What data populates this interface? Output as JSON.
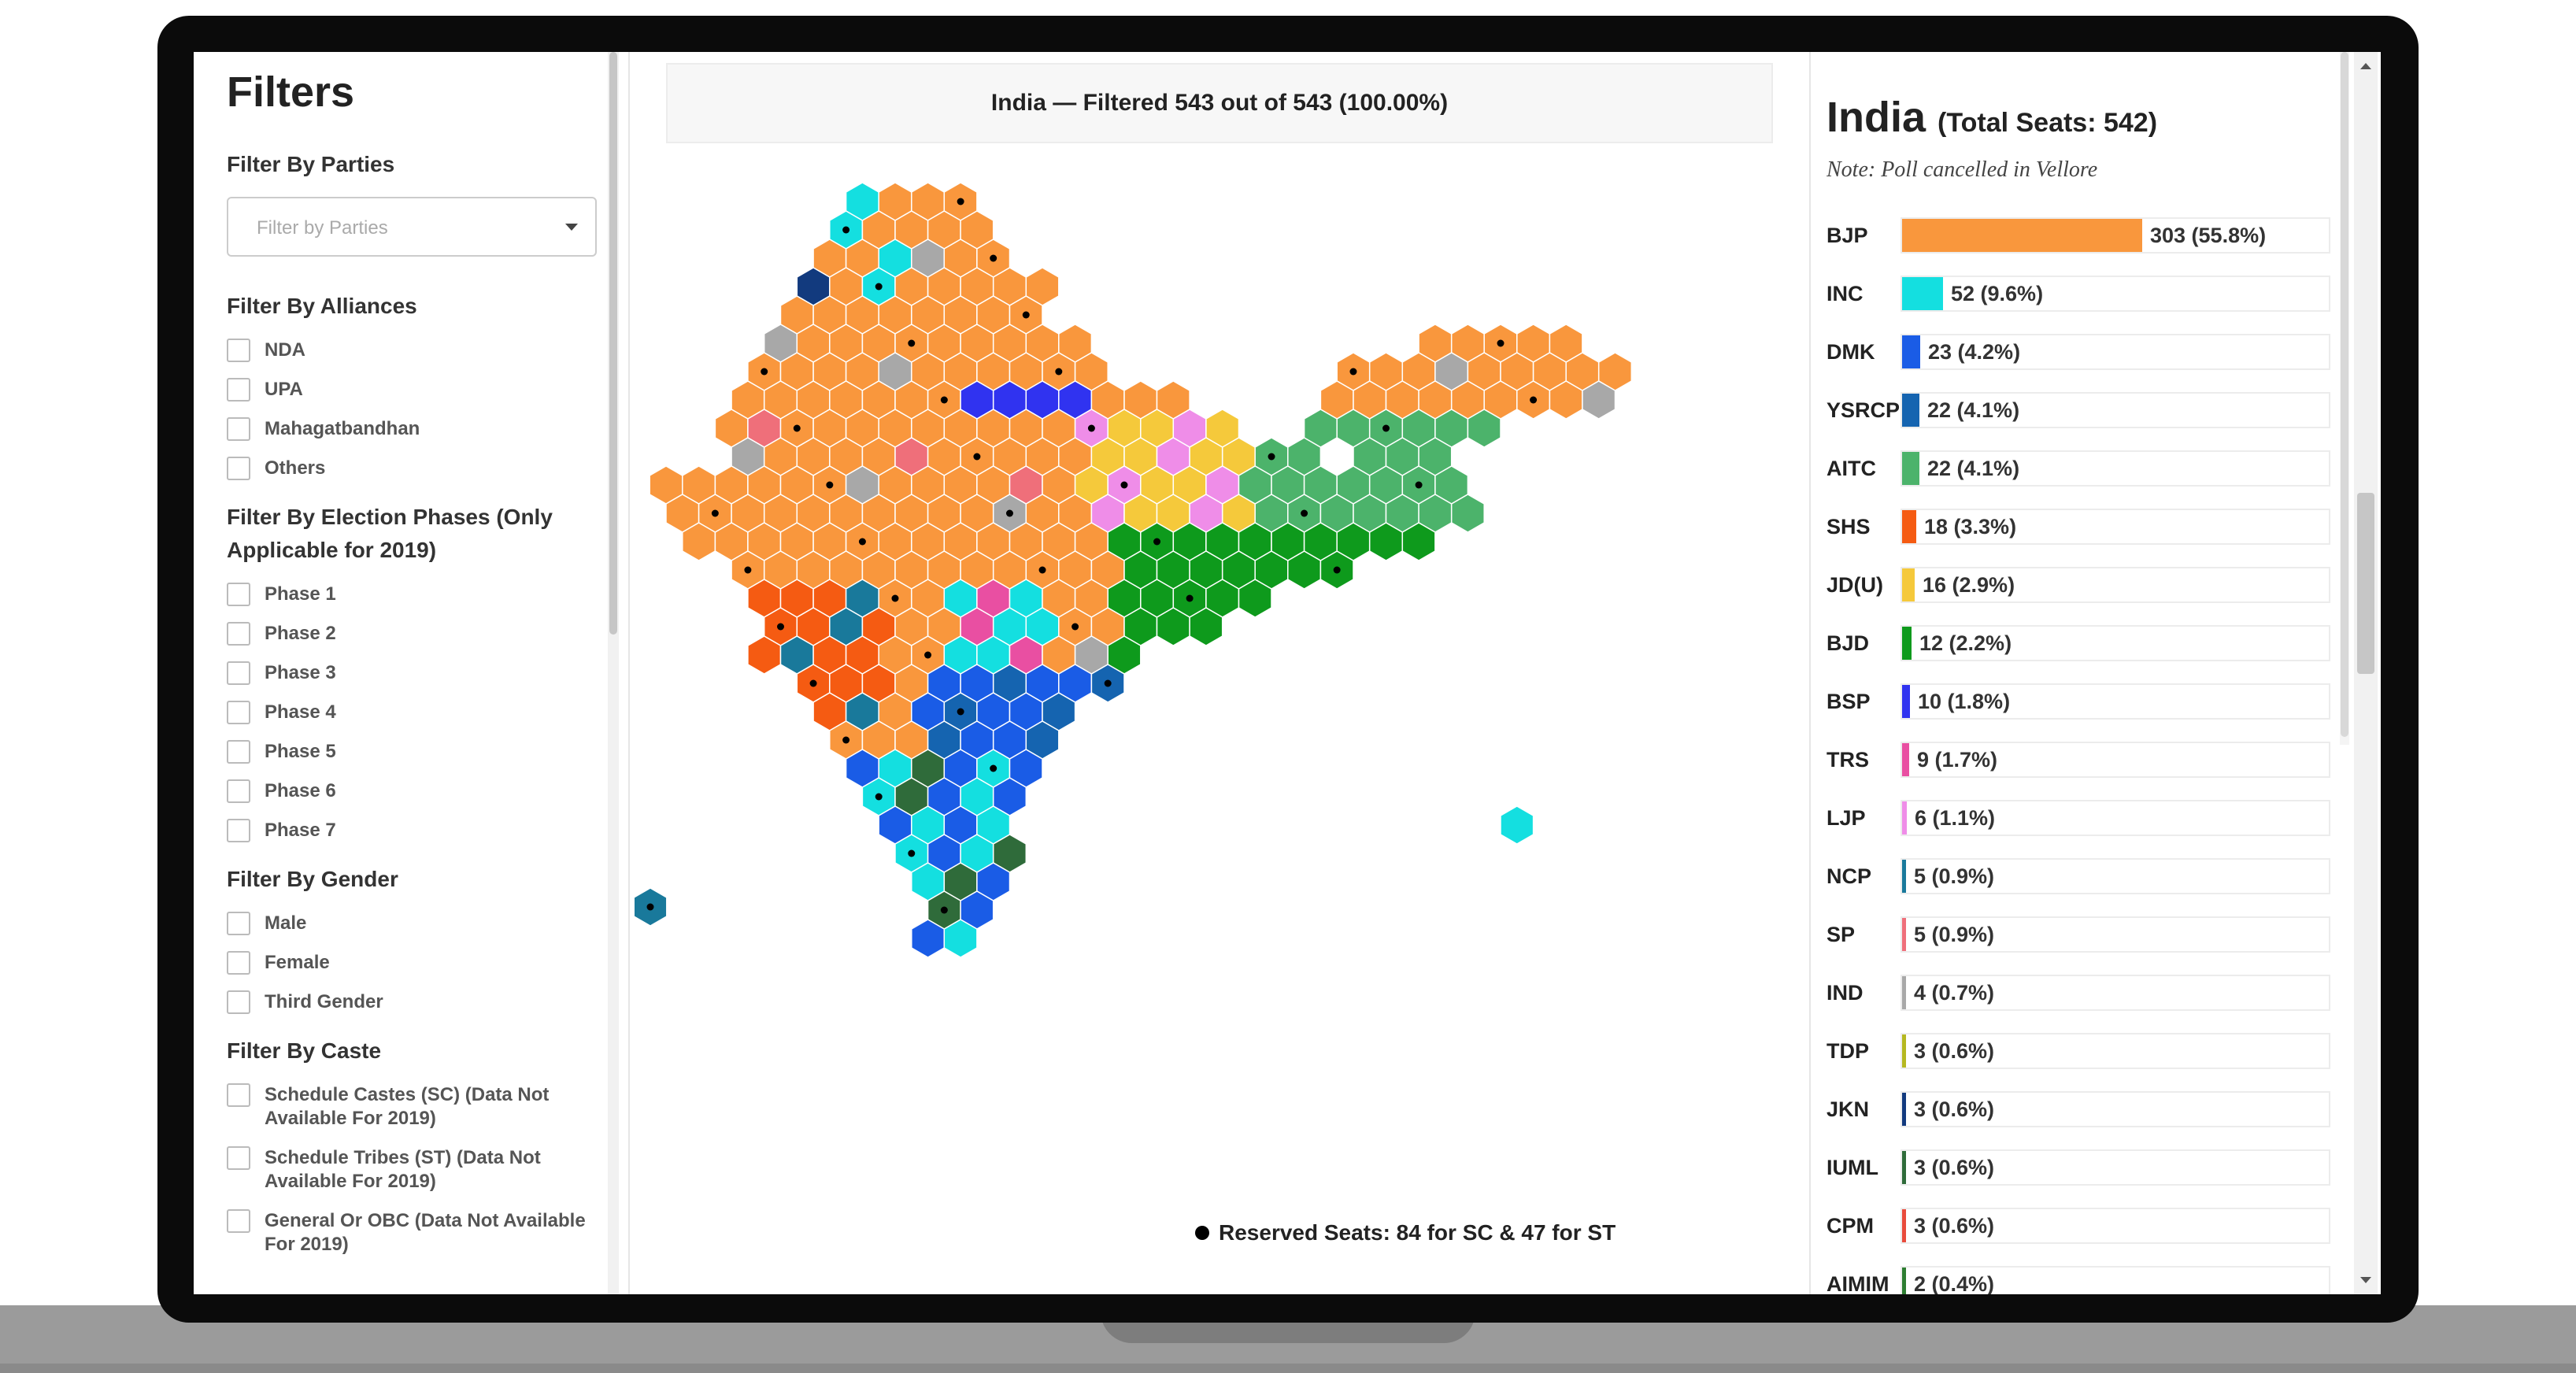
{
  "filters": {
    "title": "Filters",
    "parties": {
      "heading": "Filter By Parties",
      "placeholder": "Filter by Parties"
    },
    "alliances": {
      "heading": "Filter By Alliances",
      "options": [
        "NDA",
        "UPA",
        "Mahagatbandhan",
        "Others"
      ]
    },
    "phases": {
      "heading": "Filter By Election Phases (Only Applicable for 2019)",
      "options": [
        "Phase 1",
        "Phase 2",
        "Phase 3",
        "Phase 4",
        "Phase 5",
        "Phase 6",
        "Phase 7"
      ]
    },
    "gender": {
      "heading": "Filter By Gender",
      "options": [
        "Male",
        "Female",
        "Third Gender"
      ]
    },
    "caste": {
      "heading": "Filter By Caste",
      "options": [
        "Schedule Castes (SC) (Data Not Available For 2019)",
        "Schedule Tribes (ST) (Data Not Available For 2019)",
        "General Or OBC (Data Not Available For 2019)"
      ]
    }
  },
  "map": {
    "header": "India — Filtered 543 out of 543 (100.00%)",
    "legend": "Reserved Seats: 84 for SC & 47 for ST"
  },
  "results": {
    "title": "India",
    "subtitle": "(Total Seats: 542)",
    "note": "Note: Poll cancelled in Vellore",
    "parties": [
      {
        "name": "BJP",
        "seats": 303,
        "label": "303 (55.8%)",
        "color": "#f9973d"
      },
      {
        "name": "INC",
        "seats": 52,
        "label": "52 (9.6%)",
        "color": "#14dfe0"
      },
      {
        "name": "DMK",
        "seats": 23,
        "label": "23 (4.2%)",
        "color": "#1a5ce6"
      },
      {
        "name": "YSRCP",
        "seats": 22,
        "label": "22 (4.1%)",
        "color": "#1564b0"
      },
      {
        "name": "AITC",
        "seats": 22,
        "label": "22 (4.1%)",
        "color": "#4cb36b"
      },
      {
        "name": "SHS",
        "seats": 18,
        "label": "18 (3.3%)",
        "color": "#f55b12"
      },
      {
        "name": "JD(U)",
        "seats": 16,
        "label": "16 (2.9%)",
        "color": "#f5c93b"
      },
      {
        "name": "BJD",
        "seats": 12,
        "label": "12 (2.2%)",
        "color": "#0e9a1c"
      },
      {
        "name": "BSP",
        "seats": 10,
        "label": "10 (1.8%)",
        "color": "#3033f0"
      },
      {
        "name": "TRS",
        "seats": 9,
        "label": "9 (1.7%)",
        "color": "#e94fa2"
      },
      {
        "name": "LJP",
        "seats": 6,
        "label": "6 (1.1%)",
        "color": "#ef8de8"
      },
      {
        "name": "NCP",
        "seats": 5,
        "label": "5 (0.9%)",
        "color": "#19799b"
      },
      {
        "name": "SP",
        "seats": 5,
        "label": "5 (0.9%)",
        "color": "#ef6f7a"
      },
      {
        "name": "IND",
        "seats": 4,
        "label": "4 (0.7%)",
        "color": "#a8a8a8"
      },
      {
        "name": "TDP",
        "seats": 3,
        "label": "3 (0.6%)",
        "color": "#b5b820"
      },
      {
        "name": "JKN",
        "seats": 3,
        "label": "3 (0.6%)",
        "color": "#123a7e"
      },
      {
        "name": "IUML",
        "seats": 3,
        "label": "3 (0.6%)",
        "color": "#2f6b3a"
      },
      {
        "name": "CPM",
        "seats": 3,
        "label": "3 (0.6%)",
        "color": "#e94b3c"
      },
      {
        "name": "AIMIM",
        "seats": 2,
        "label": "2 (0.4%)",
        "color": "#2e7d32"
      }
    ]
  }
}
